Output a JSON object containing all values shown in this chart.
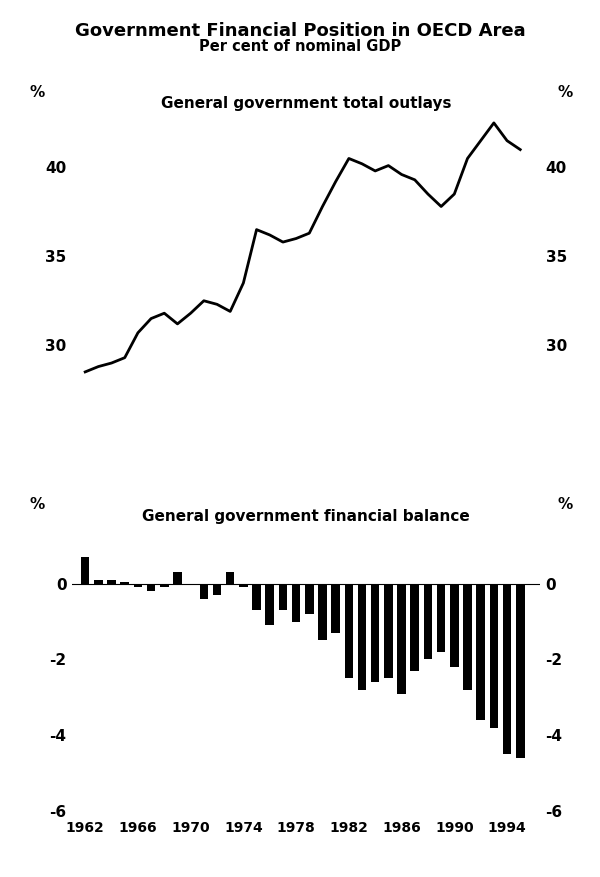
{
  "title": "Government Financial Position in OECD Area",
  "subtitle": "Per cent of nominal GDP",
  "outlays_label": "General government total outlays",
  "balance_label": "General government financial balance",
  "years": [
    1962,
    1963,
    1964,
    1965,
    1966,
    1967,
    1968,
    1969,
    1970,
    1971,
    1972,
    1973,
    1974,
    1975,
    1976,
    1977,
    1978,
    1979,
    1980,
    1981,
    1982,
    1983,
    1984,
    1985,
    1986,
    1987,
    1988,
    1989,
    1990,
    1991,
    1992,
    1993,
    1994,
    1995
  ],
  "outlays": [
    28.5,
    28.8,
    29.0,
    29.3,
    30.7,
    31.5,
    31.8,
    31.2,
    31.8,
    32.5,
    32.3,
    31.9,
    33.5,
    36.5,
    36.2,
    35.8,
    36.0,
    36.3,
    37.8,
    39.2,
    40.5,
    40.2,
    39.8,
    40.1,
    39.6,
    39.3,
    38.5,
    37.8,
    38.5,
    40.5,
    41.5,
    42.5,
    41.5,
    41.0
  ],
  "balance": [
    0.7,
    0.1,
    0.1,
    0.05,
    -0.1,
    -0.2,
    -0.1,
    0.3,
    -0.05,
    -0.4,
    -0.3,
    0.3,
    -0.1,
    -0.7,
    -1.1,
    -0.7,
    -1.0,
    -0.8,
    -1.5,
    -1.3,
    -2.5,
    -2.8,
    -2.6,
    -2.5,
    -2.9,
    -2.3,
    -2.0,
    -1.8,
    -2.2,
    -2.8,
    -3.6,
    -3.8,
    -4.5,
    -4.6
  ],
  "outlays_ylim": [
    27,
    43
  ],
  "outlays_yticks": [
    30,
    35,
    40
  ],
  "balance_ylim": [
    -6,
    1.5
  ],
  "balance_yticks": [
    -6,
    -4,
    -2,
    0
  ],
  "xticks": [
    1962,
    1966,
    1970,
    1974,
    1978,
    1982,
    1986,
    1990,
    1994
  ],
  "bar_color": "#000000",
  "line_color": "#000000",
  "background_color": "#ffffff"
}
